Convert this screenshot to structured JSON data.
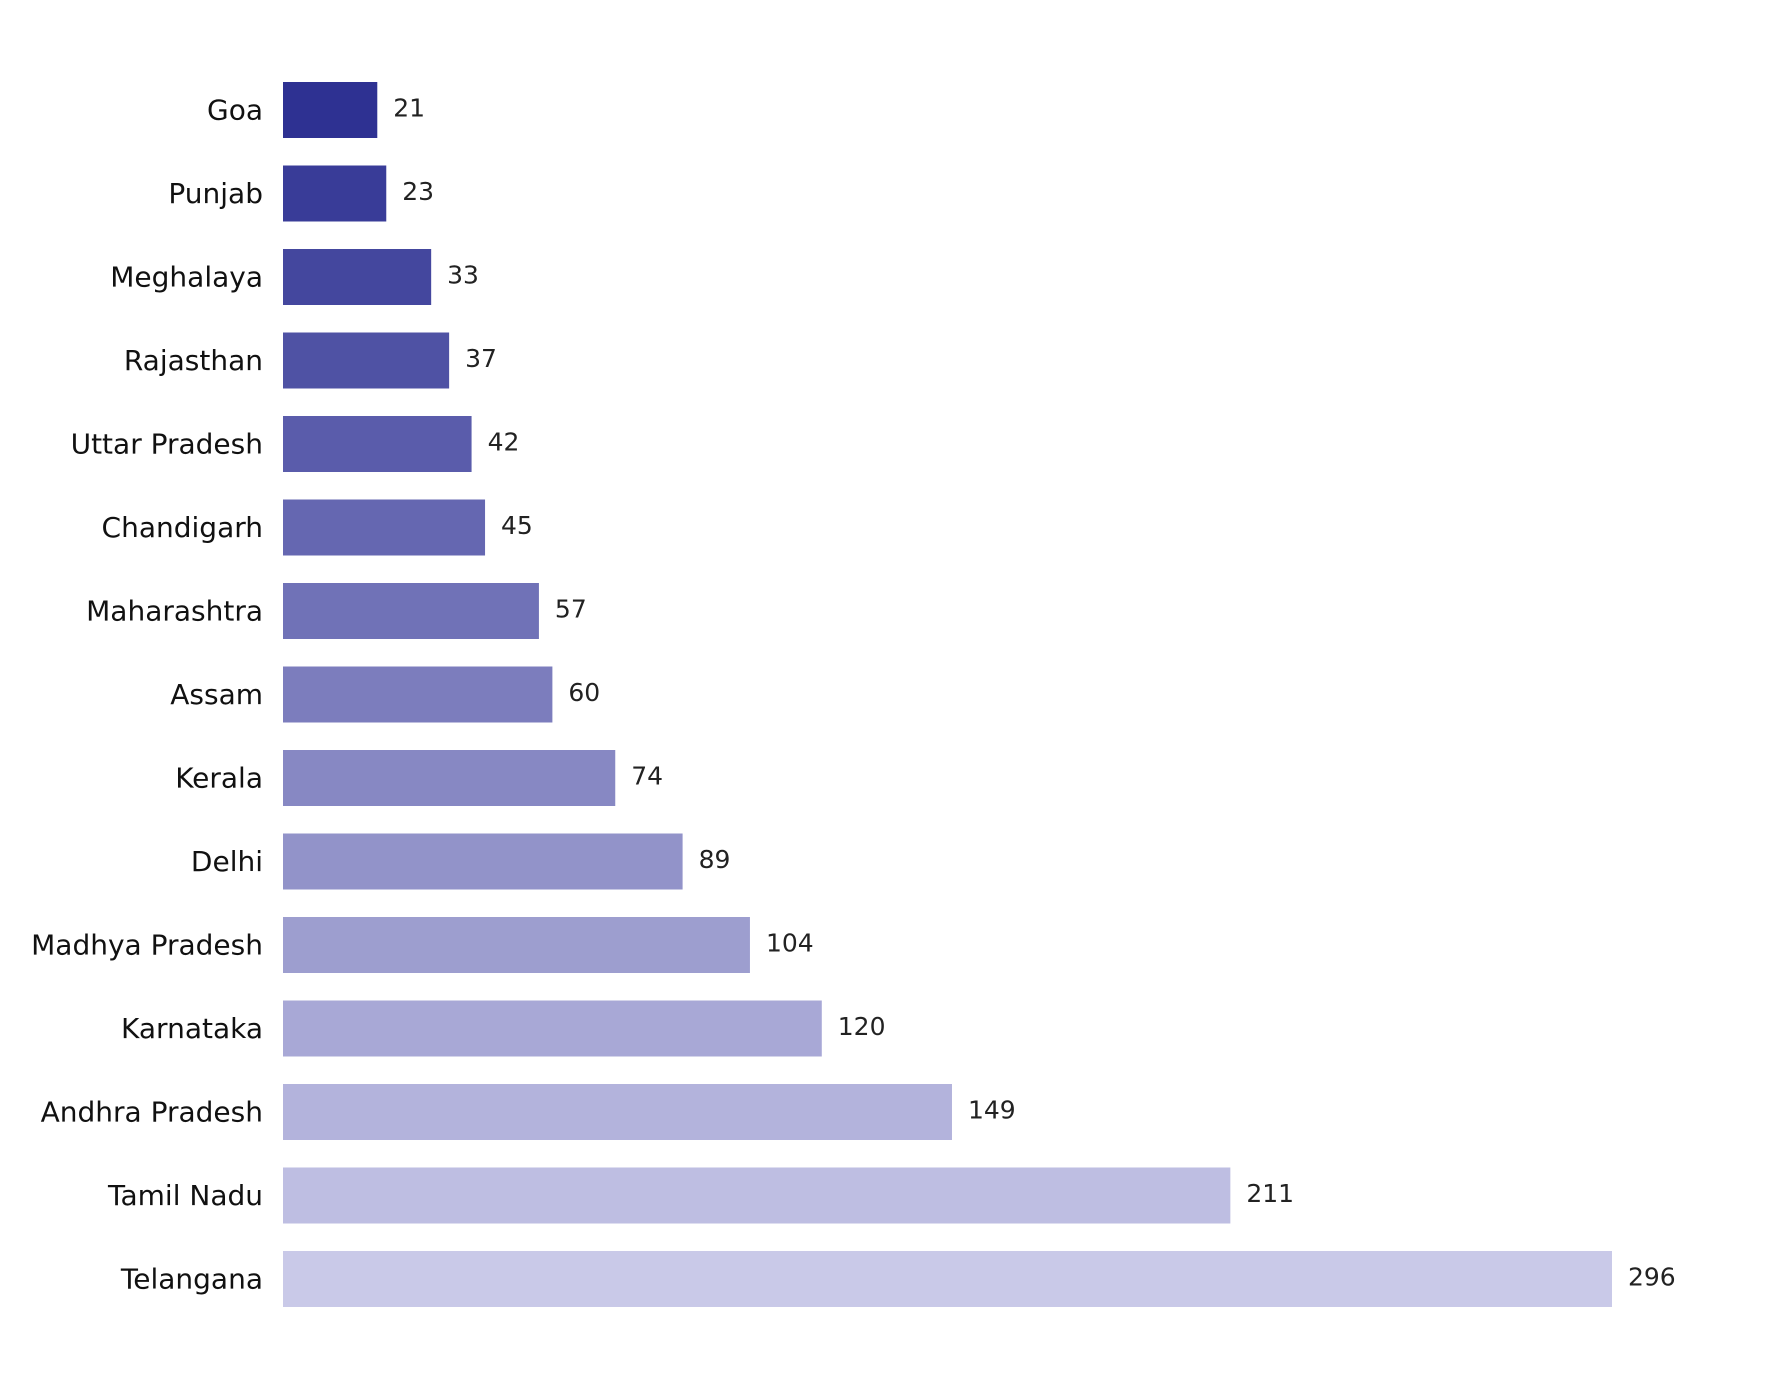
{
  "chart_data": {
    "type": "bar",
    "orientation": "horizontal",
    "title": "",
    "xlabel": "",
    "ylabel": "",
    "xlim": [
      0,
      320
    ],
    "grid": false,
    "legend": "none",
    "categories": [
      "Goa",
      "Punjab",
      "Meghalaya",
      "Rajasthan",
      "Uttar Pradesh",
      "Chandigarh",
      "Maharashtra",
      "Assam",
      "Kerala",
      "Delhi",
      "Madhya Pradesh",
      "Karnataka",
      "Andhra Pradesh",
      "Tamil Nadu",
      "Telangana"
    ],
    "values": [
      21,
      23,
      33,
      37,
      42,
      45,
      57,
      60,
      74,
      89,
      104,
      120,
      149,
      211,
      296
    ],
    "data_labels": [
      "21",
      "23",
      "33",
      "37",
      "42",
      "45",
      "57",
      "60",
      "74",
      "89",
      "104",
      "120",
      "149",
      "211",
      "296"
    ],
    "colors": {
      "darkest": "#2e3192",
      "lightest": "#c9c9e8"
    }
  }
}
